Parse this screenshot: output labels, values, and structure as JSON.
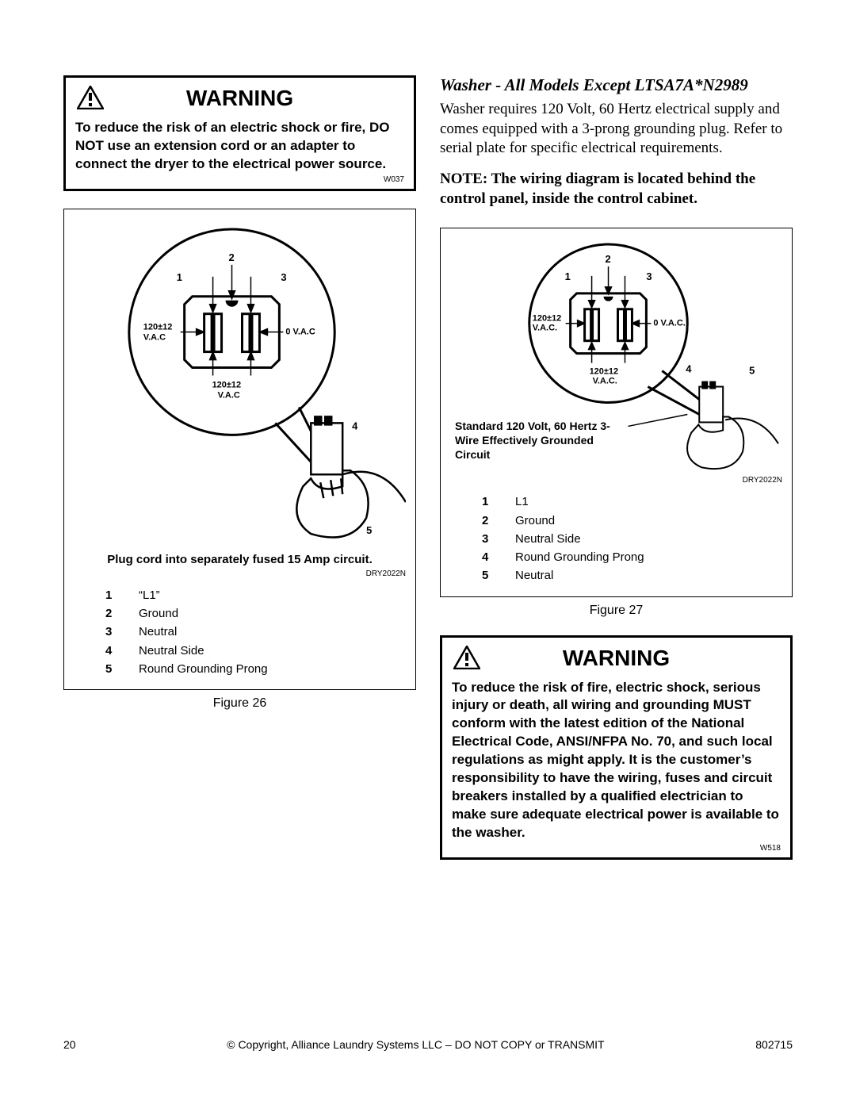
{
  "warning1": {
    "title": "WARNING",
    "body": "To reduce the risk of an electric shock or fire, DO NOT use an extension cord or an adapter to connect the dryer to the electrical power source.",
    "code": "W037"
  },
  "figure26": {
    "outlet_labels": {
      "n1": "1",
      "n2": "2",
      "n3": "3",
      "n4": "4",
      "n5": "5",
      "l_top": "120±12",
      "l_top2": "V.A.C",
      "r_top": "0 V.A.C",
      "bot": "120±12",
      "bot2": "V.A.C"
    },
    "instruction": "Plug cord into separately fused 15 Amp circuit.",
    "code": "DRY2022N",
    "legend": [
      {
        "n": "1",
        "t": "“L1”"
      },
      {
        "n": "2",
        "t": "Ground"
      },
      {
        "n": "3",
        "t": "Neutral"
      },
      {
        "n": "4",
        "t": "Neutral Side"
      },
      {
        "n": "5",
        "t": "Round Grounding Prong"
      }
    ],
    "caption": "Figure 26"
  },
  "washer_section": {
    "heading": "Washer - All Models Except LTSA7A*N2989",
    "para": "Washer requires 120 Volt, 60 Hertz electrical supply and comes equipped with a 3-prong grounding plug. Refer to serial plate for specific electrical requirements.",
    "note": "NOTE: The wiring diagram is located behind the control panel, inside the control cabinet."
  },
  "figure27": {
    "outlet_labels": {
      "n1": "1",
      "n2": "2",
      "n3": "3",
      "n4": "4",
      "n5": "5",
      "l_top": "120±12",
      "l_top2": "V.A.C.",
      "r_top": "0 V.A.C.",
      "bot": "120±12",
      "bot2": "V.A.C."
    },
    "text": "Standard 120 Volt, 60 Hertz 3-Wire Effectively Grounded Circuit",
    "code": "DRY2022N",
    "legend": [
      {
        "n": "1",
        "t": "L1"
      },
      {
        "n": "2",
        "t": "Ground"
      },
      {
        "n": "3",
        "t": "Neutral Side"
      },
      {
        "n": "4",
        "t": "Round Grounding Prong"
      },
      {
        "n": "5",
        "t": "Neutral"
      }
    ],
    "caption": "Figure 27"
  },
  "warning2": {
    "title": "WARNING",
    "body": "To reduce the risk of fire, electric shock, serious injury or death, all wiring and grounding MUST conform with the latest edition of the National Electrical Code, ANSI/NFPA No. 70, and such local regulations as might apply. It is the customer’s responsibility to have the wiring, fuses and circuit breakers installed by a qualified electrician to make sure adequate electrical power is available to the washer.",
    "code": "W518"
  },
  "footer": {
    "page": "20",
    "copyright": "© Copyright, Alliance Laundry Systems LLC – DO NOT COPY or TRANSMIT",
    "doc": "802715"
  }
}
